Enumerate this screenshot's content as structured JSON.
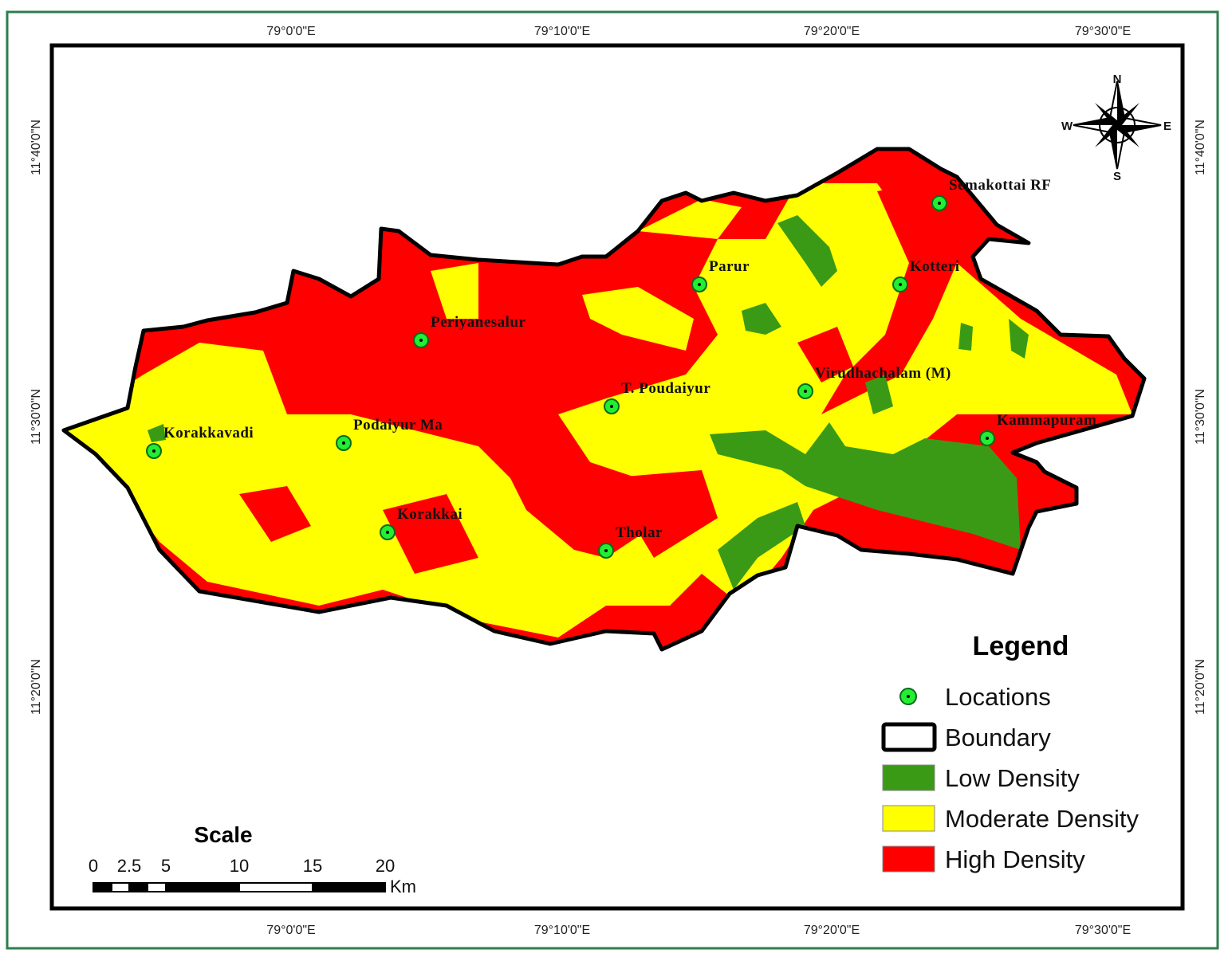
{
  "map": {
    "graticule": {
      "longitudes": [
        "79°0'0\"E",
        "79°10'0\"E",
        "79°20'0\"E",
        "79°30'0\"E"
      ],
      "latitudes": [
        "11°40'0\"N",
        "11°30'0\"N",
        "11°20'0\"N"
      ]
    },
    "compass": {
      "north": "N",
      "east": "E",
      "south": "S",
      "west": "W"
    },
    "locations": [
      "Semakottai RF",
      "Parur",
      "Kotteri",
      "Periyanesalur",
      "Virudhachalam (M)",
      "T. Poudaiyur",
      "Kammapuram",
      "Korakkavadi",
      "Podaiyur Ma",
      "Korakkai",
      "Tholar"
    ],
    "legend": {
      "title": "Legend",
      "items": [
        "Locations",
        "Boundary",
        "Low Density",
        "Moderate Density",
        "High Density"
      ]
    },
    "scale": {
      "title": "Scale",
      "ticks": [
        "0",
        "2.5",
        "5",
        "10",
        "15",
        "20"
      ],
      "unit": "Km"
    }
  }
}
